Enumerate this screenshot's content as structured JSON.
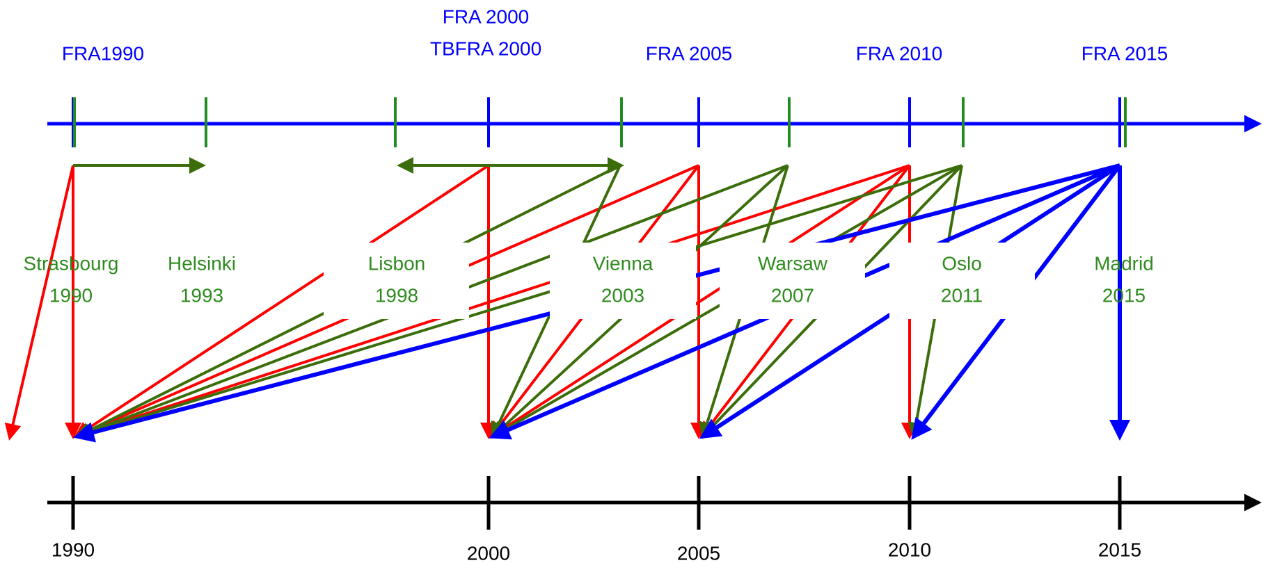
{
  "fra_labels": [
    [
      "FRA1990"
    ],
    [
      "FRA 2000",
      "TBFRA 2000"
    ],
    [
      "FRA 2005"
    ],
    [
      "FRA 2010"
    ],
    [
      "FRA 2015"
    ]
  ],
  "conferences": [
    {
      "name": "Strasbourg",
      "year": "1990"
    },
    {
      "name": "Helsinki",
      "year": "1993"
    },
    {
      "name": "Lisbon",
      "year": "1998"
    },
    {
      "name": "Vienna",
      "year": "2003"
    },
    {
      "name": "Warsaw",
      "year": "2007"
    },
    {
      "name": "Oslo",
      "year": "2011"
    },
    {
      "name": "Madrid",
      "year": "2015"
    }
  ],
  "years": [
    "1990",
    "2000",
    "2005",
    "2010",
    "2015"
  ]
}
